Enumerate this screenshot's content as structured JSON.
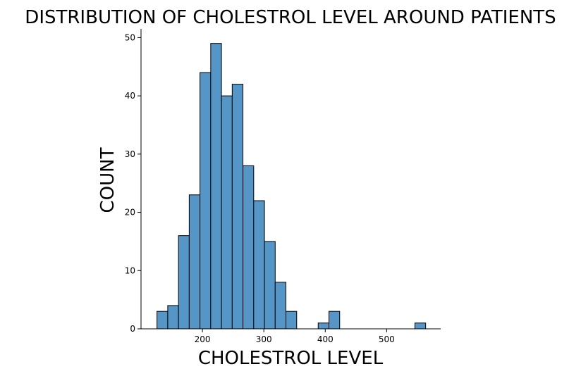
{
  "chart_data": {
    "type": "bar",
    "title": "DISTRIBUTION OF CHOLESTROL LEVEL AROUND PATIENTS",
    "xlabel": "CHOLESTROL LEVEL",
    "ylabel": "COUNT",
    "bins": [
      {
        "x0": 126.0,
        "x1": 143.5,
        "count": 3
      },
      {
        "x0": 143.5,
        "x1": 161.0,
        "count": 4
      },
      {
        "x0": 161.0,
        "x1": 178.5,
        "count": 16
      },
      {
        "x0": 178.5,
        "x1": 196.0,
        "count": 23
      },
      {
        "x0": 196.0,
        "x1": 213.5,
        "count": 44
      },
      {
        "x0": 213.5,
        "x1": 231.0,
        "count": 49
      },
      {
        "x0": 231.0,
        "x1": 248.5,
        "count": 40
      },
      {
        "x0": 248.5,
        "x1": 266.0,
        "count": 42
      },
      {
        "x0": 266.0,
        "x1": 283.5,
        "count": 28
      },
      {
        "x0": 283.5,
        "x1": 301.0,
        "count": 22
      },
      {
        "x0": 301.0,
        "x1": 318.5,
        "count": 15
      },
      {
        "x0": 318.5,
        "x1": 336.0,
        "count": 8
      },
      {
        "x0": 336.0,
        "x1": 353.5,
        "count": 3
      },
      {
        "x0": 353.5,
        "x1": 371.0,
        "count": 0
      },
      {
        "x0": 371.0,
        "x1": 388.5,
        "count": 0
      },
      {
        "x0": 388.5,
        "x1": 406.0,
        "count": 1
      },
      {
        "x0": 406.0,
        "x1": 423.5,
        "count": 3
      },
      {
        "x0": 423.5,
        "x1": 441.0,
        "count": 0
      },
      {
        "x0": 441.0,
        "x1": 458.5,
        "count": 0
      },
      {
        "x0": 458.5,
        "x1": 476.0,
        "count": 0
      },
      {
        "x0": 476.0,
        "x1": 493.5,
        "count": 0
      },
      {
        "x0": 493.5,
        "x1": 511.0,
        "count": 0
      },
      {
        "x0": 511.0,
        "x1": 528.5,
        "count": 0
      },
      {
        "x0": 528.5,
        "x1": 546.0,
        "count": 0
      },
      {
        "x0": 546.0,
        "x1": 563.5,
        "count": 1
      }
    ],
    "xlim": [
      100,
      588
    ],
    "ylim": [
      0,
      51.5
    ],
    "xticks": [
      200,
      300,
      400,
      500
    ],
    "yticks": [
      0,
      10,
      20,
      30,
      40,
      50
    ],
    "bar_color": "#5596c7",
    "edge_color": "#000000",
    "grid": false,
    "legend": "none"
  }
}
